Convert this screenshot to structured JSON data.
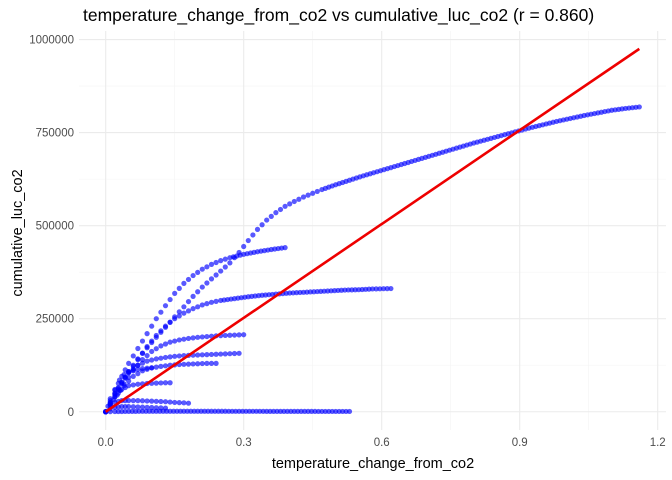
{
  "chart_data": {
    "type": "scatter",
    "title": "temperature_change_from_co2 vs cumulative_luc_co2 (r = 0.860)",
    "xlabel": "temperature_change_from_co2",
    "ylabel": "cumulative_luc_co2",
    "xlim": [
      -0.058,
      1.218
    ],
    "ylim": [
      -49000,
      1023000
    ],
    "x_ticks": [
      0.0,
      0.3,
      0.6,
      0.9,
      1.2
    ],
    "x_tick_labels": [
      "0.0",
      "0.3",
      "0.6",
      "0.9",
      "1.2"
    ],
    "y_ticks": [
      0,
      250000,
      500000,
      750000,
      1000000
    ],
    "y_tick_labels": [
      "0",
      "250000",
      "500000",
      "750000",
      "1000000"
    ],
    "grid": true,
    "legend": "none",
    "point_color": "#0000ff",
    "point_alpha": 0.65,
    "line_color": "#ee0000",
    "regression_line": {
      "x": [
        0.0,
        1.16
      ],
      "y": [
        0,
        975000
      ]
    },
    "series": [
      {
        "points": [
          [
            0.0,
            0
          ],
          [
            0.01,
            25000
          ],
          [
            0.02,
            48000
          ],
          [
            0.035,
            78000
          ],
          [
            0.05,
            108000
          ],
          [
            0.07,
            142000
          ],
          [
            0.09,
            172000
          ],
          [
            0.11,
            200000
          ],
          [
            0.13,
            227000
          ],
          [
            0.15,
            255000
          ],
          [
            0.17,
            282000
          ],
          [
            0.19,
            310000
          ],
          [
            0.21,
            335000
          ],
          [
            0.23,
            357000
          ],
          [
            0.25,
            378000
          ],
          [
            0.27,
            400000
          ],
          [
            0.29,
            428000
          ],
          [
            0.31,
            460000
          ],
          [
            0.33,
            490000
          ],
          [
            0.35,
            515000
          ],
          [
            0.37,
            535000
          ],
          [
            0.39,
            552000
          ],
          [
            0.41,
            565000
          ],
          [
            0.43,
            577000
          ],
          [
            0.45,
            587000
          ],
          [
            0.47,
            597000
          ],
          [
            0.5,
            610000
          ],
          [
            0.53,
            622000
          ],
          [
            0.56,
            634000
          ],
          [
            0.59,
            645000
          ],
          [
            0.62,
            656000
          ],
          [
            0.65,
            667000
          ],
          [
            0.68,
            678000
          ],
          [
            0.71,
            689000
          ],
          [
            0.74,
            700000
          ],
          [
            0.77,
            711000
          ],
          [
            0.8,
            722000
          ],
          [
            0.83,
            732000
          ],
          [
            0.86,
            742000
          ],
          [
            0.89,
            752000
          ],
          [
            0.92,
            762000
          ],
          [
            0.95,
            771000
          ],
          [
            0.98,
            780000
          ],
          [
            1.01,
            788000
          ],
          [
            1.04,
            796000
          ],
          [
            1.07,
            803000
          ],
          [
            1.1,
            810000
          ],
          [
            1.13,
            815000
          ],
          [
            1.16,
            819000
          ]
        ]
      },
      {
        "points": [
          [
            0.0,
            0
          ],
          [
            0.01,
            30000
          ],
          [
            0.02,
            58000
          ],
          [
            0.035,
            95000
          ],
          [
            0.05,
            130000
          ],
          [
            0.07,
            170000
          ],
          [
            0.09,
            210000
          ],
          [
            0.11,
            250000
          ],
          [
            0.13,
            285000
          ],
          [
            0.15,
            318000
          ],
          [
            0.17,
            345000
          ],
          [
            0.19,
            366000
          ],
          [
            0.21,
            383000
          ],
          [
            0.23,
            396000
          ],
          [
            0.25,
            406000
          ],
          [
            0.27,
            414000
          ],
          [
            0.3,
            423000
          ],
          [
            0.33,
            430000
          ],
          [
            0.36,
            436000
          ],
          [
            0.39,
            441000
          ]
        ]
      },
      {
        "points": [
          [
            0.0,
            0
          ],
          [
            0.01,
            22000
          ],
          [
            0.02,
            45000
          ],
          [
            0.035,
            75000
          ],
          [
            0.05,
            105000
          ],
          [
            0.07,
            140000
          ],
          [
            0.09,
            175000
          ],
          [
            0.11,
            205000
          ],
          [
            0.13,
            230000
          ],
          [
            0.15,
            250000
          ],
          [
            0.17,
            265000
          ],
          [
            0.19,
            277000
          ],
          [
            0.21,
            287000
          ],
          [
            0.23,
            294000
          ],
          [
            0.25,
            299000
          ],
          [
            0.28,
            304000
          ],
          [
            0.31,
            309000
          ],
          [
            0.34,
            313000
          ],
          [
            0.37,
            316000
          ],
          [
            0.4,
            319000
          ],
          [
            0.43,
            321000
          ],
          [
            0.46,
            323000
          ],
          [
            0.49,
            325000
          ],
          [
            0.52,
            327000
          ],
          [
            0.55,
            328000
          ],
          [
            0.58,
            330000
          ],
          [
            0.62,
            331000
          ]
        ]
      },
      {
        "points": [
          [
            0.0,
            0
          ],
          [
            0.01,
            20000
          ],
          [
            0.02,
            40000
          ],
          [
            0.04,
            75000
          ],
          [
            0.06,
            110000
          ],
          [
            0.08,
            140000
          ],
          [
            0.1,
            162000
          ],
          [
            0.12,
            177000
          ],
          [
            0.14,
            187000
          ],
          [
            0.16,
            193000
          ],
          [
            0.18,
            197000
          ],
          [
            0.2,
            200000
          ],
          [
            0.22,
            202000
          ],
          [
            0.24,
            204000
          ],
          [
            0.26,
            205000
          ],
          [
            0.28,
            206000
          ],
          [
            0.3,
            207000
          ]
        ]
      },
      {
        "points": [
          [
            0.0,
            0
          ],
          [
            0.01,
            25000
          ],
          [
            0.02,
            50000
          ],
          [
            0.035,
            80000
          ],
          [
            0.05,
            105000
          ],
          [
            0.07,
            125000
          ],
          [
            0.09,
            136000
          ],
          [
            0.11,
            142000
          ],
          [
            0.13,
            146000
          ],
          [
            0.15,
            149000
          ],
          [
            0.17,
            151000
          ],
          [
            0.19,
            152000
          ],
          [
            0.21,
            153000
          ],
          [
            0.23,
            154000
          ],
          [
            0.25,
            155000
          ],
          [
            0.27,
            156000
          ],
          [
            0.29,
            157000
          ]
        ]
      },
      {
        "points": [
          [
            0.0,
            0
          ],
          [
            0.01,
            20000
          ],
          [
            0.025,
            45000
          ],
          [
            0.04,
            70000
          ],
          [
            0.06,
            95000
          ],
          [
            0.08,
            110000
          ],
          [
            0.1,
            118000
          ],
          [
            0.12,
            122000
          ],
          [
            0.14,
            125000
          ],
          [
            0.16,
            127000
          ],
          [
            0.18,
            128000
          ],
          [
            0.2,
            129000
          ],
          [
            0.22,
            130000
          ],
          [
            0.24,
            130000
          ]
        ]
      },
      {
        "points": [
          [
            0.0,
            0
          ],
          [
            0.005,
            15000
          ],
          [
            0.01,
            35000
          ],
          [
            0.02,
            60000
          ],
          [
            0.03,
            85000
          ],
          [
            0.04,
            100000
          ],
          [
            0.05,
            108000
          ],
          [
            0.06,
            112000
          ],
          [
            0.07,
            114000
          ],
          [
            0.08,
            116000
          ],
          [
            0.09,
            117000
          ],
          [
            0.1,
            118000
          ]
        ]
      },
      {
        "points": [
          [
            0.0,
            0
          ],
          [
            0.01,
            20000
          ],
          [
            0.02,
            40000
          ],
          [
            0.035,
            60000
          ],
          [
            0.05,
            70000
          ],
          [
            0.07,
            74000
          ],
          [
            0.09,
            76000
          ],
          [
            0.11,
            77000
          ],
          [
            0.13,
            78000
          ],
          [
            0.14,
            78000
          ]
        ]
      },
      {
        "points": [
          [
            0.0,
            0
          ],
          [
            0.01,
            15000
          ],
          [
            0.02,
            25000
          ],
          [
            0.035,
            30000
          ],
          [
            0.05,
            30000
          ],
          [
            0.07,
            30000
          ],
          [
            0.09,
            29000
          ],
          [
            0.11,
            28000
          ],
          [
            0.13,
            27000
          ],
          [
            0.15,
            25000
          ],
          [
            0.17,
            24000
          ],
          [
            0.18,
            23000
          ]
        ]
      },
      {
        "points": [
          [
            0.0,
            0
          ],
          [
            0.01,
            8000
          ],
          [
            0.02,
            12000
          ],
          [
            0.035,
            14000
          ],
          [
            0.05,
            14000
          ],
          [
            0.07,
            13000
          ],
          [
            0.09,
            12000
          ],
          [
            0.11,
            11000
          ],
          [
            0.13,
            10000
          ]
        ]
      },
      {
        "points": [
          [
            0.0,
            0
          ],
          [
            0.02,
            500
          ],
          [
            0.05,
            1000
          ],
          [
            0.08,
            1200
          ],
          [
            0.11,
            1300
          ],
          [
            0.14,
            1400
          ],
          [
            0.17,
            1400
          ],
          [
            0.2,
            1400
          ],
          [
            0.23,
            1300
          ],
          [
            0.26,
            1300
          ],
          [
            0.29,
            1200
          ],
          [
            0.32,
            1200
          ],
          [
            0.35,
            1100
          ],
          [
            0.38,
            1100
          ],
          [
            0.41,
            1000
          ],
          [
            0.44,
            1000
          ],
          [
            0.47,
            900
          ],
          [
            0.5,
            800
          ],
          [
            0.53,
            800
          ]
        ]
      }
    ]
  }
}
